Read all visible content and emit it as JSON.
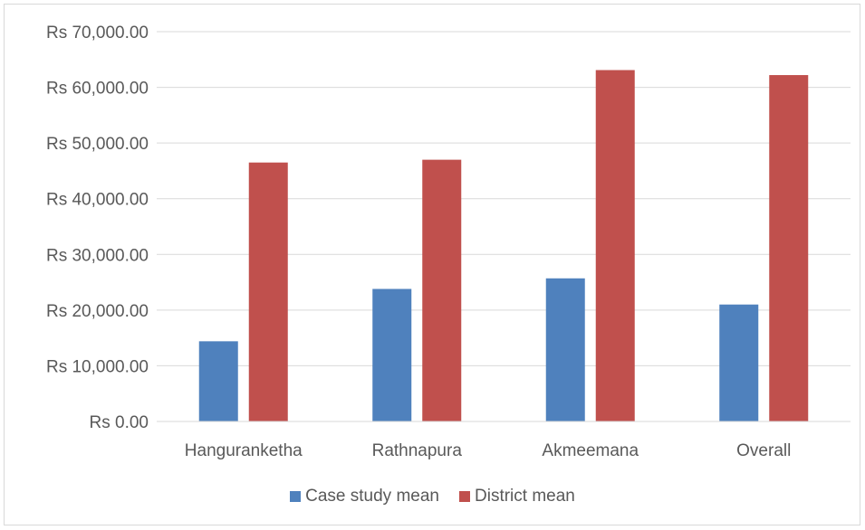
{
  "chart_data": {
    "type": "bar",
    "categories": [
      "Hanguranketha",
      "Rathnapura",
      "Akmeemana",
      "Overall"
    ],
    "series": [
      {
        "name": "Case study mean",
        "color": "#4f81bd",
        "values": [
          14400,
          23800,
          25700,
          21000
        ]
      },
      {
        "name": "District mean",
        "color": "#c0504d",
        "values": [
          46500,
          47000,
          63100,
          62200
        ]
      }
    ],
    "ylim": [
      0,
      70000
    ],
    "yticks": [
      "Rs 0.00",
      "Rs 10,000.00",
      "Rs 20,000.00",
      "Rs 30,000.00",
      "Rs 40,000.00",
      "Rs 50,000.00",
      "Rs 60,000.00",
      "Rs 70,000.00"
    ],
    "grid": true,
    "legend_position": "bottom"
  }
}
